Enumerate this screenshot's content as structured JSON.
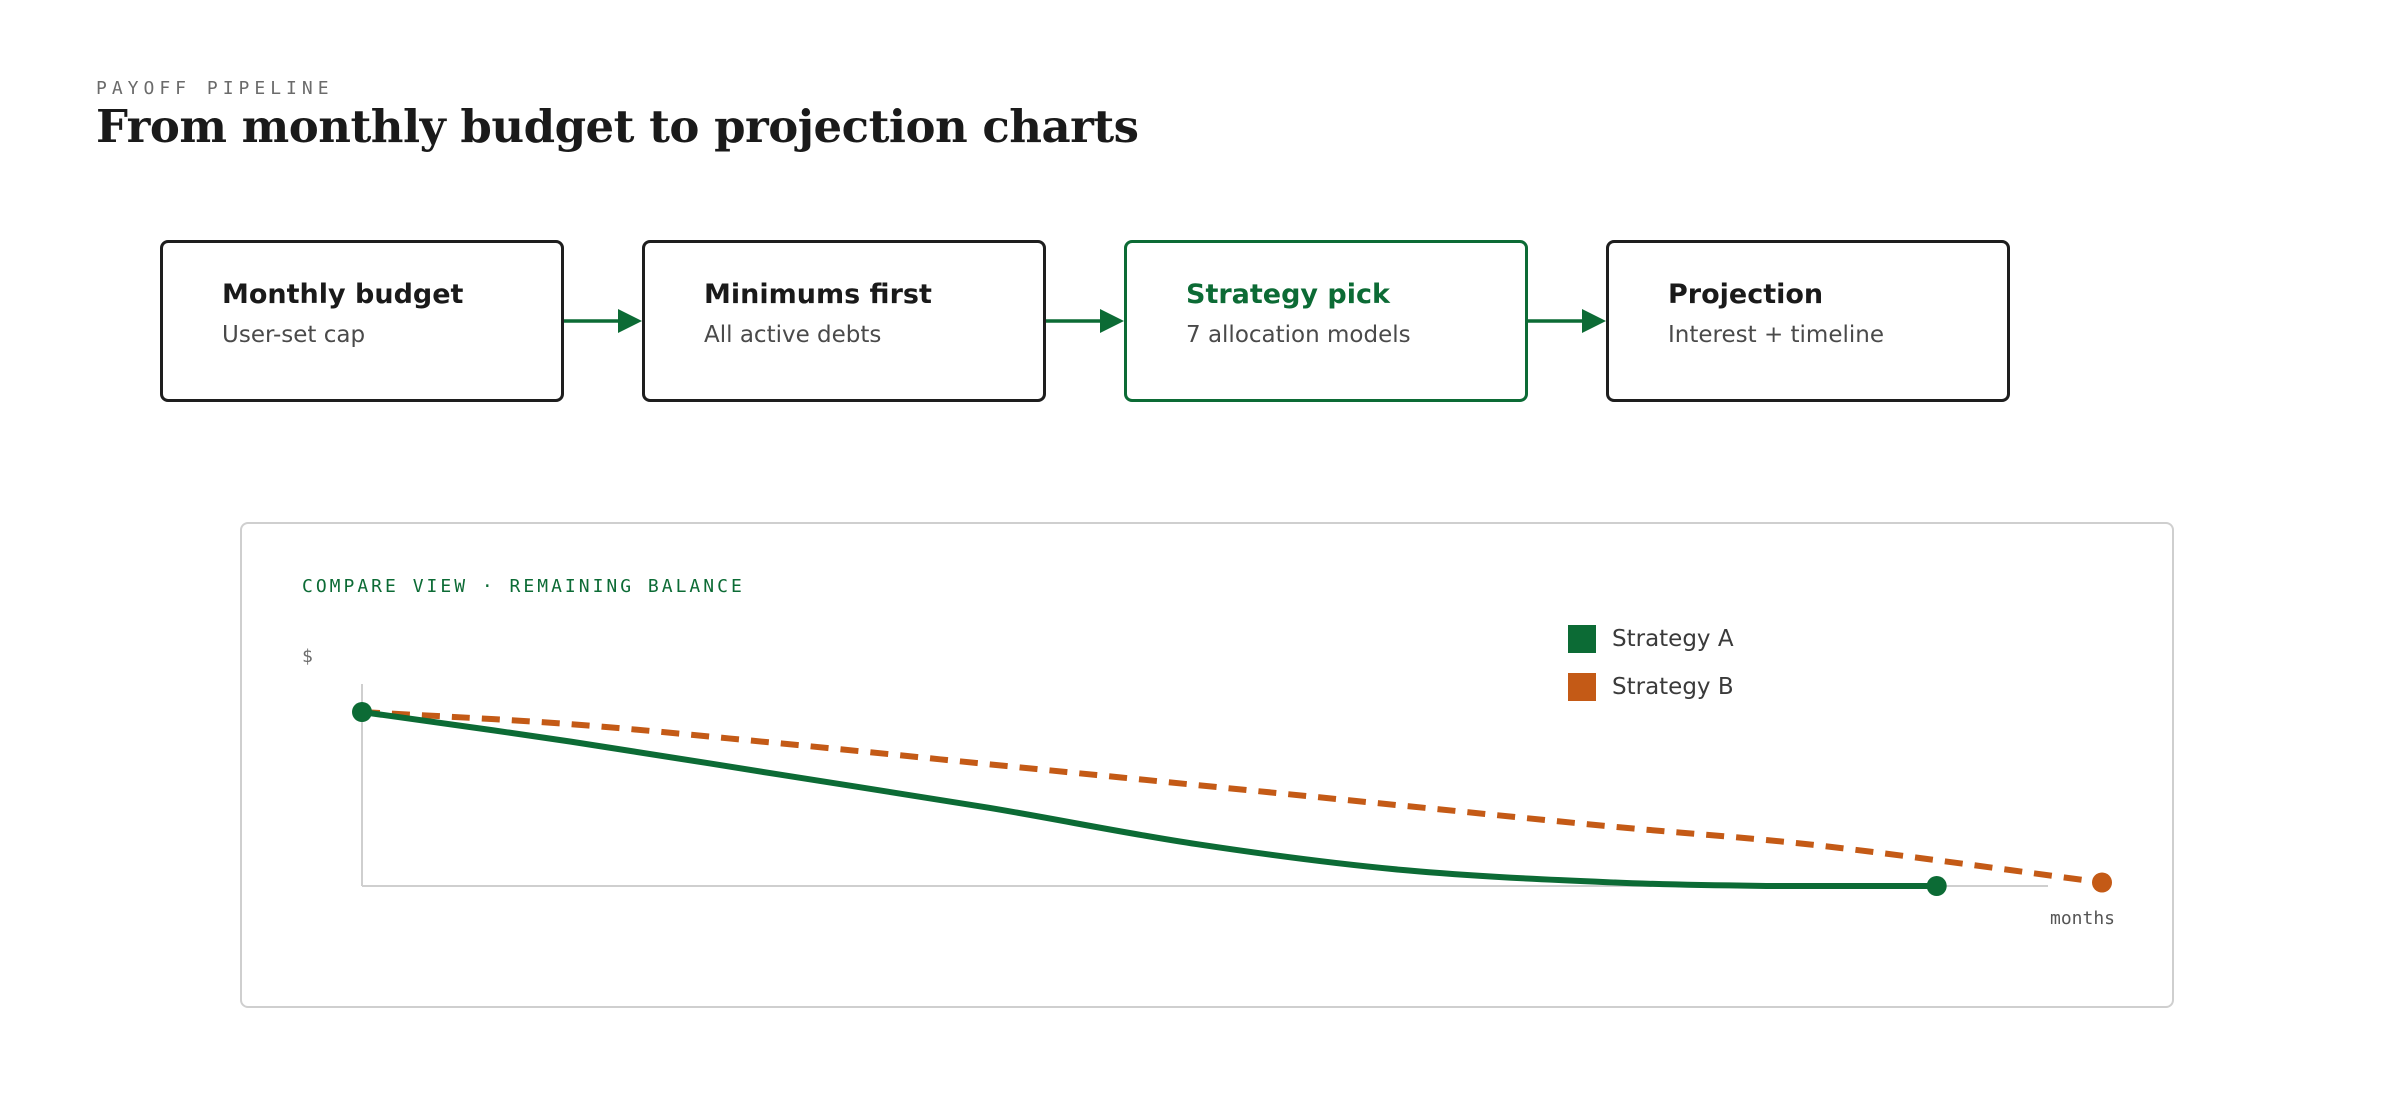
{
  "header": {
    "eyebrow": "PAYOFF PIPELINE",
    "title": "From monthly budget to projection charts"
  },
  "colors": {
    "accent": "#0c6b35",
    "strategy_a": "#0c6b35",
    "strategy_b": "#c45a16",
    "border": "#1e1e1e"
  },
  "pipeline": {
    "steps": [
      {
        "title": "Monthly budget",
        "subtitle": "User-set cap",
        "active": false
      },
      {
        "title": "Minimums first",
        "subtitle": "All active debts",
        "active": false
      },
      {
        "title": "Strategy pick",
        "subtitle": "7 allocation models",
        "active": true
      },
      {
        "title": "Projection",
        "subtitle": "Interest + timeline",
        "active": false
      }
    ]
  },
  "chart": {
    "label": "COMPARE VIEW · REMAINING BALANCE",
    "ylabel": "$",
    "xlabel": "months",
    "legend": [
      "Strategy A",
      "Strategy B"
    ]
  },
  "chart_data": {
    "type": "line",
    "xlabel": "months",
    "ylabel": "$",
    "xlim": [
      0,
      100
    ],
    "ylim": [
      0,
      100
    ],
    "grid": false,
    "legend_position": "top-right",
    "series": [
      {
        "name": "Strategy A",
        "color": "#0c6b35",
        "style": "solid",
        "x": [
          0,
          12,
          24,
          36,
          48,
          60,
          72,
          81,
          90.5
        ],
        "y": [
          100,
          83,
          64,
          45,
          24,
          9,
          2,
          0,
          0
        ]
      },
      {
        "name": "Strategy B",
        "color": "#c45a16",
        "style": "dashed",
        "x": [
          0,
          12,
          24,
          36,
          48,
          60,
          72,
          84,
          100
        ],
        "y": [
          100,
          93,
          82,
          70,
          58,
          46,
          34,
          23,
          2
        ]
      }
    ]
  }
}
